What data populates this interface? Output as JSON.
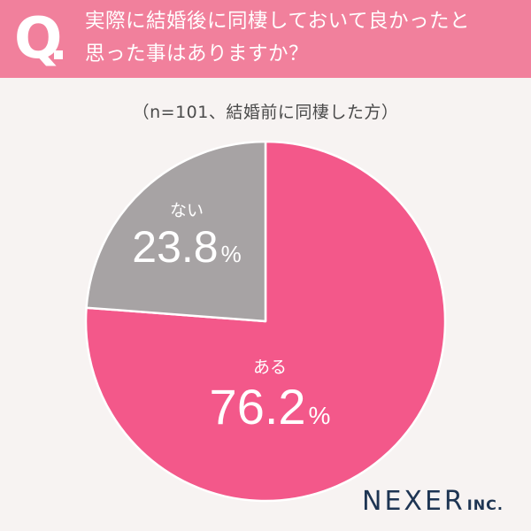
{
  "header": {
    "q_letter": "Q",
    "question_line1": "実際に結婚後に同棲しておいて良かったと",
    "question_line2": "思った事はありますか？"
  },
  "chart_data": {
    "type": "pie",
    "title": "実際に結婚後に同棲しておいて良かったと思った事はありますか？",
    "subtitle": "（n=101、結婚前に同棲した方）",
    "categories": [
      "ある",
      "ない"
    ],
    "values": [
      76.2,
      23.8
    ],
    "value_labels": [
      "76.2",
      "23.8"
    ],
    "unit": "%",
    "colors": [
      "#f3588a",
      "#a7a3a4"
    ],
    "start": "12 o'clock",
    "direction": "clockwise"
  },
  "logo": {
    "main": "NEXER",
    "sub": "INC."
  }
}
